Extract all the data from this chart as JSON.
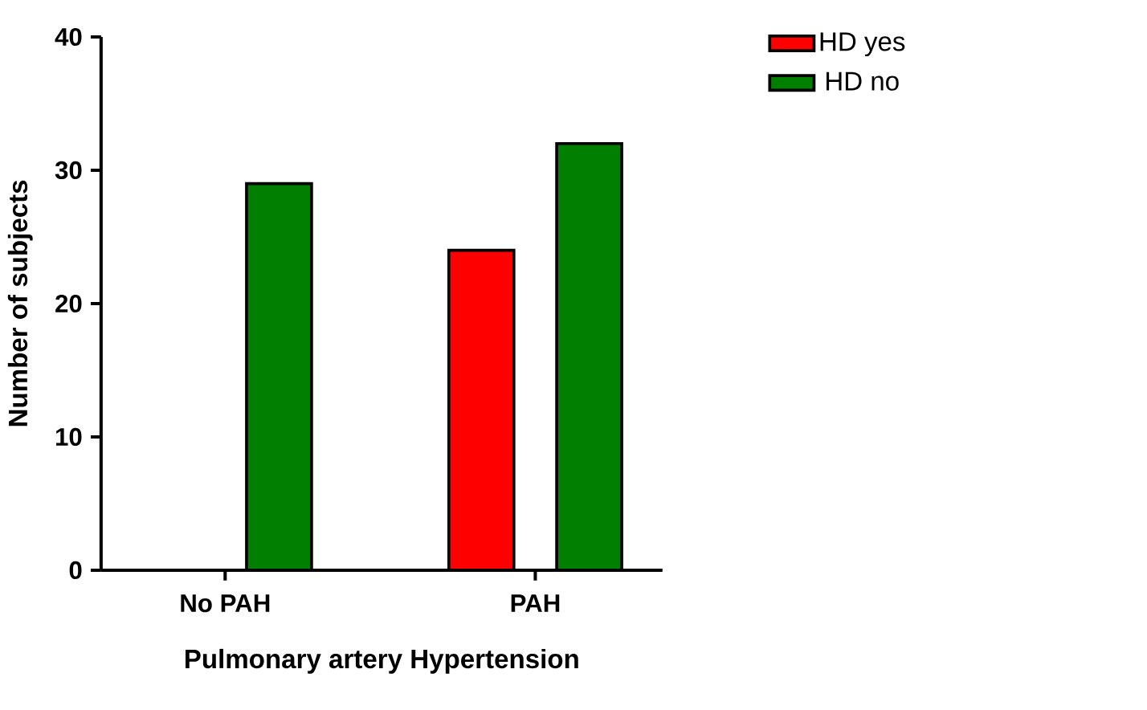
{
  "chart_data": {
    "type": "bar",
    "xlabel": "Pulmonary artery Hypertension",
    "ylabel": "Number of subjects",
    "categories": [
      "No PAH",
      "PAH"
    ],
    "series": [
      {
        "name": "HD yes",
        "color": "#ff0000",
        "values": [
          0,
          24
        ]
      },
      {
        "name": "HD no",
        "color": "#007f00",
        "values": [
          29,
          32
        ]
      }
    ],
    "ylim": [
      0,
      40
    ],
    "yticks": [
      0,
      10,
      20,
      30,
      40
    ],
    "grid": false,
    "legend": "top right"
  }
}
